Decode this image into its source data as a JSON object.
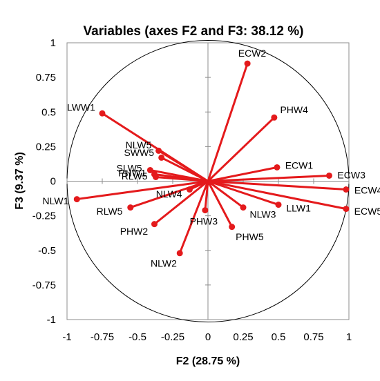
{
  "chart_data": {
    "type": "scatter",
    "subtype": "correlation-circle",
    "title": "Variables (axes F2 and F3: 38.12 %)",
    "xlabel": "F2 (28.75 %)",
    "ylabel": "F3 (9.37 %)",
    "xlim": [
      -1,
      1
    ],
    "ylim": [
      -1,
      1
    ],
    "x_ticks": [
      "-1",
      "-0.75",
      "-0.5",
      "-0.25",
      "0",
      "0.25",
      "0.5",
      "0.75",
      "1"
    ],
    "y_ticks": [
      "1",
      "0.75",
      "0.5",
      "0.25",
      "0",
      "-0.25",
      "-0.5",
      "-0.75",
      "-1"
    ],
    "grid": false,
    "unit_circle": true,
    "vector_color": "#e41a1c",
    "points": [
      {
        "label": "ECW2",
        "x": 0.28,
        "y": 0.85
      },
      {
        "label": "PHW4",
        "x": 0.47,
        "y": 0.46
      },
      {
        "label": "LWW1",
        "x": -0.75,
        "y": 0.49
      },
      {
        "label": "NLW5",
        "x": -0.35,
        "y": 0.22
      },
      {
        "label": "SWW5",
        "x": -0.33,
        "y": 0.17
      },
      {
        "label": "SLW5",
        "x": -0.41,
        "y": 0.08
      },
      {
        "label": "PHW1",
        "x": -0.38,
        "y": 0.05
      },
      {
        "label": "RLW5",
        "x": -0.37,
        "y": 0.03
      },
      {
        "label": "ECW1",
        "x": 0.49,
        "y": 0.1
      },
      {
        "label": "ECW3",
        "x": 0.86,
        "y": 0.04
      },
      {
        "label": "ECW4",
        "x": 0.98,
        "y": -0.06
      },
      {
        "label": "ECW5",
        "x": 0.98,
        "y": -0.2
      },
      {
        "label": "LLW1",
        "x": 0.5,
        "y": -0.17
      },
      {
        "label": "NLW3",
        "x": 0.25,
        "y": -0.19
      },
      {
        "label": "PHW5",
        "x": 0.17,
        "y": -0.33
      },
      {
        "label": "PHW3",
        "x": -0.02,
        "y": -0.21
      },
      {
        "label": "NLW4",
        "x": -0.13,
        "y": -0.06
      },
      {
        "label": "NLW2",
        "x": -0.2,
        "y": -0.52
      },
      {
        "label": "PHW2",
        "x": -0.38,
        "y": -0.31
      },
      {
        "label": "RLW5",
        "x": -0.55,
        "y": -0.19
      },
      {
        "label": "NLW1",
        "x": -0.93,
        "y": -0.13
      }
    ]
  }
}
